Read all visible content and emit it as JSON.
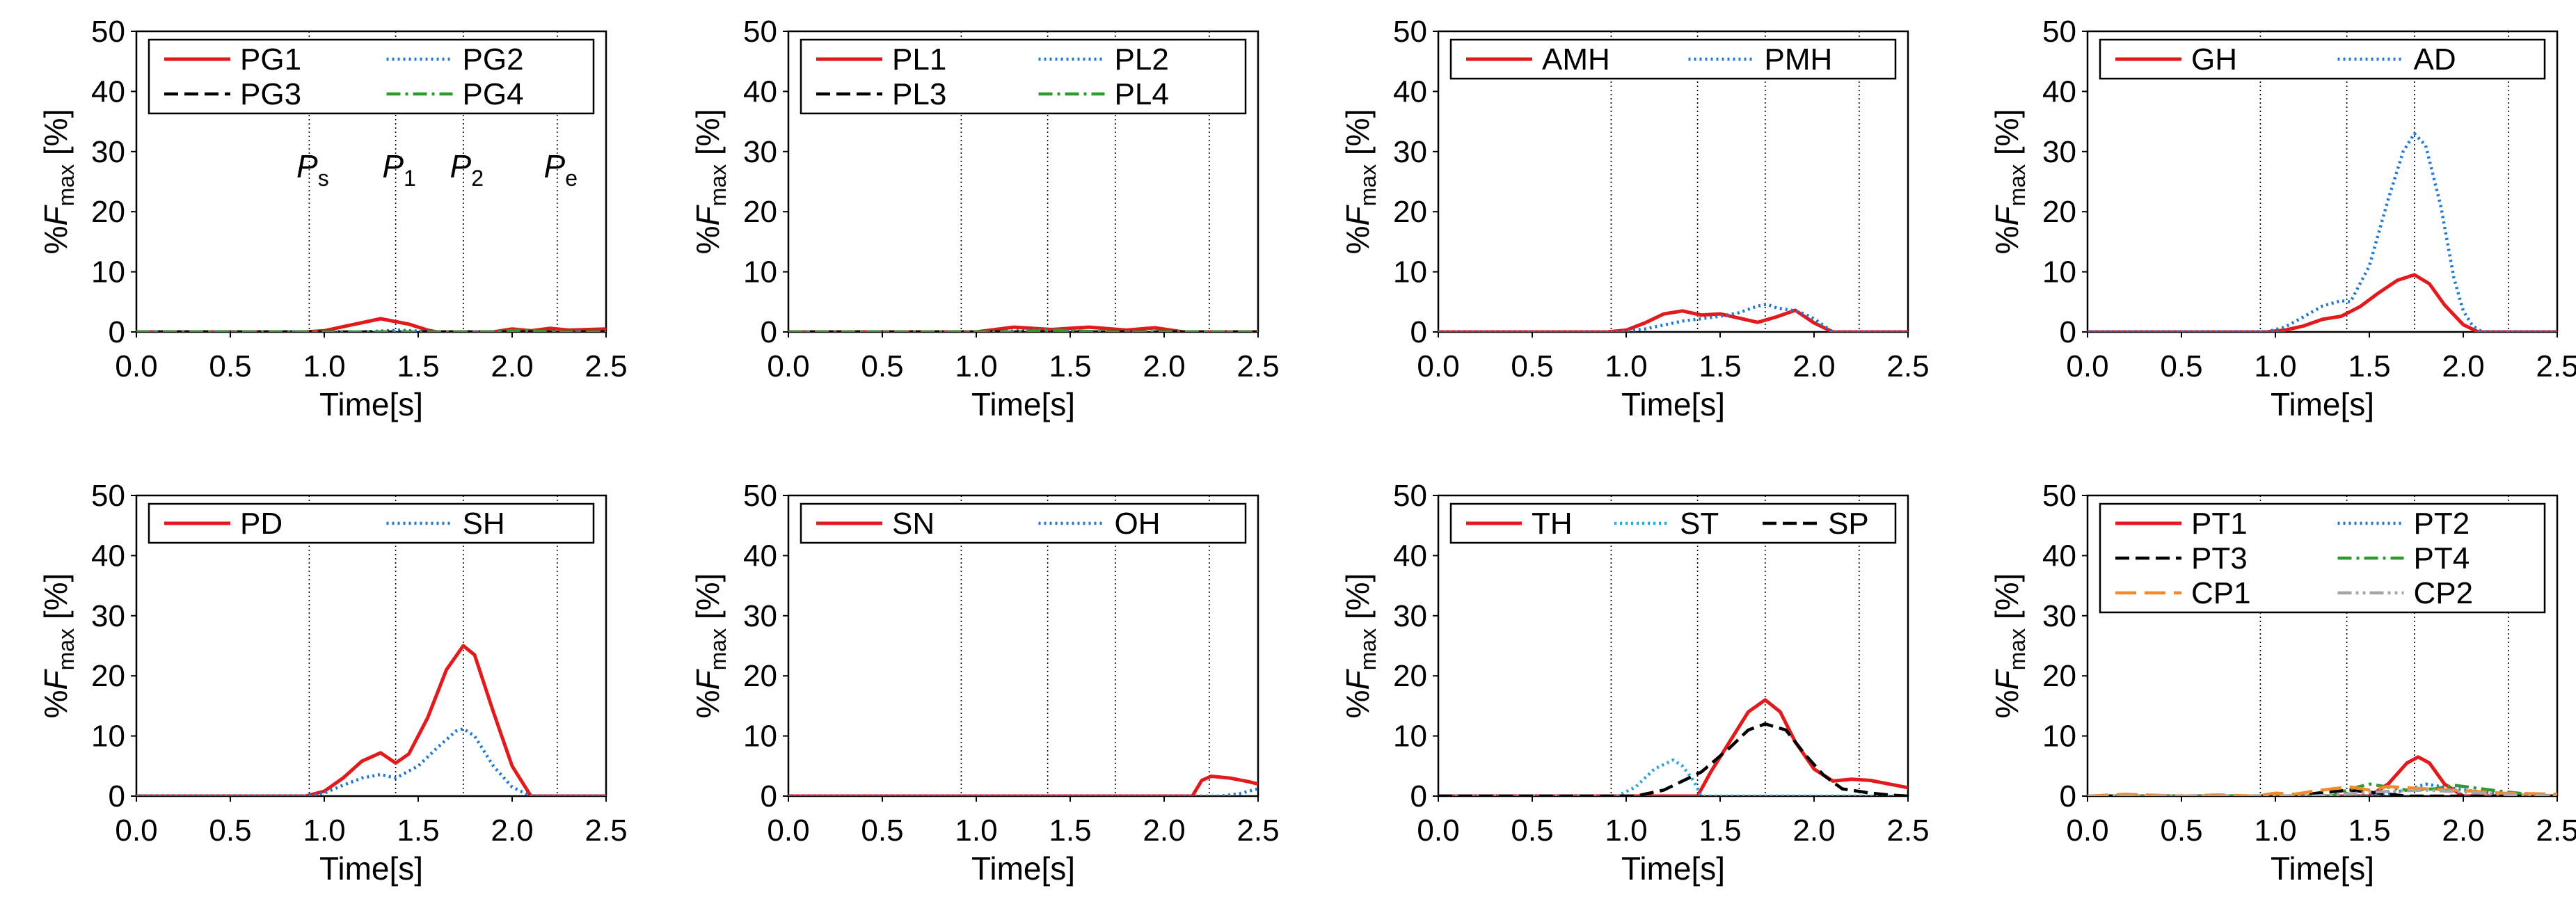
{
  "figure": {
    "panel_count": 8,
    "x_axis": {
      "label": "Time[s]",
      "min": 0.0,
      "max": 2.5,
      "ticks": [
        "0.0",
        "0.5",
        "1.0",
        "1.5",
        "2.0",
        "2.5"
      ]
    },
    "y_axis": {
      "label_prefix": "%",
      "label_symbol": "F",
      "label_subscript": "max",
      "label_unit": "[%]",
      "min": 0,
      "max": 50,
      "ticks": [
        "0",
        "10",
        "20",
        "30",
        "40",
        "50"
      ]
    },
    "phase_lines": [
      0.92,
      1.38,
      1.74,
      2.24
    ],
    "phase_labels": [
      {
        "base": "P",
        "sub": "s",
        "x": 0.92
      },
      {
        "base": "P",
        "sub": "1",
        "x": 1.38
      },
      {
        "base": "P",
        "sub": "2",
        "x": 1.74
      },
      {
        "base": "P",
        "sub": "e",
        "x": 2.24
      }
    ]
  },
  "colors": {
    "red": "#e31a1c",
    "blue": "#1f78d1",
    "black": "#000000",
    "green": "#2e9a2e",
    "orange": "#f4892a",
    "gray": "#a6a6a6"
  },
  "chart_data": [
    {
      "type": "line",
      "panel": 1,
      "xlabel": "Time[s]",
      "ylabel": "%Fmax [%]",
      "xlim": [
        0,
        2.5
      ],
      "ylim": [
        0,
        50
      ],
      "show_phase_labels": true,
      "legend_columns": 2,
      "legend_location": "top",
      "series": [
        {
          "name": "PG1",
          "color": "#e31a1c",
          "style": "solid",
          "x": [
            0,
            0.9,
            1.0,
            1.15,
            1.3,
            1.45,
            1.55,
            1.6,
            1.9,
            2.0,
            2.1,
            2.2,
            2.3,
            2.5
          ],
          "y": [
            0,
            0,
            0.2,
            1.2,
            2.2,
            1.3,
            0.3,
            0,
            0,
            0.5,
            0.2,
            0.6,
            0.3,
            0.5
          ]
        },
        {
          "name": "PG2",
          "color": "#1f78d1",
          "style": "dotted",
          "x": [
            0,
            1.2,
            1.4,
            1.6,
            2.5
          ],
          "y": [
            0,
            0,
            0.3,
            0,
            0
          ]
        },
        {
          "name": "PG3",
          "color": "#000000",
          "style": "dashed",
          "x": [
            0,
            2.5
          ],
          "y": [
            0,
            0
          ]
        },
        {
          "name": "PG4",
          "color": "#2e9a2e",
          "style": "dashdot",
          "x": [
            0,
            1.9,
            2.05,
            2.2,
            2.5
          ],
          "y": [
            0,
            0,
            0.3,
            0,
            0
          ]
        }
      ]
    },
    {
      "type": "line",
      "panel": 2,
      "xlabel": "Time[s]",
      "ylabel": "%Fmax [%]",
      "xlim": [
        0,
        2.5
      ],
      "ylim": [
        0,
        50
      ],
      "show_phase_labels": false,
      "legend_columns": 2,
      "legend_location": "top",
      "series": [
        {
          "name": "PL1",
          "color": "#e31a1c",
          "style": "solid",
          "x": [
            0,
            1.0,
            1.2,
            1.4,
            1.6,
            1.8,
            1.95,
            2.1,
            2.5
          ],
          "y": [
            0,
            0,
            0.8,
            0.4,
            0.8,
            0.3,
            0.7,
            0,
            0
          ]
        },
        {
          "name": "PL2",
          "color": "#1f78d1",
          "style": "dotted",
          "x": [
            0,
            1.1,
            1.35,
            1.6,
            2.5
          ],
          "y": [
            0,
            0,
            0.4,
            0,
            0
          ]
        },
        {
          "name": "PL3",
          "color": "#000000",
          "style": "dashed",
          "x": [
            0,
            2.5
          ],
          "y": [
            0,
            0
          ]
        },
        {
          "name": "PL4",
          "color": "#2e9a2e",
          "style": "dashdot",
          "x": [
            0,
            1.2,
            1.4,
            1.7,
            2.5
          ],
          "y": [
            0,
            0,
            0.3,
            0,
            0
          ]
        }
      ]
    },
    {
      "type": "line",
      "panel": 3,
      "xlabel": "Time[s]",
      "ylabel": "%Fmax [%]",
      "xlim": [
        0,
        2.5
      ],
      "ylim": [
        0,
        50
      ],
      "show_phase_labels": false,
      "legend_columns": 2,
      "legend_location": "top",
      "series": [
        {
          "name": "AMH",
          "color": "#e31a1c",
          "style": "solid",
          "x": [
            0,
            0.9,
            1.0,
            1.1,
            1.2,
            1.3,
            1.4,
            1.5,
            1.6,
            1.7,
            1.8,
            1.9,
            2.0,
            2.1,
            2.5
          ],
          "y": [
            0,
            0,
            0.3,
            1.5,
            3.0,
            3.5,
            2.8,
            3.0,
            2.3,
            1.6,
            2.5,
            3.6,
            1.5,
            0,
            0
          ]
        },
        {
          "name": "PMH",
          "color": "#1f78d1",
          "style": "dotted",
          "x": [
            0,
            0.95,
            1.1,
            1.3,
            1.5,
            1.6,
            1.7,
            1.75,
            1.8,
            1.9,
            1.95,
            2.0,
            2.1,
            2.5
          ],
          "y": [
            0,
            0,
            0.5,
            1.8,
            2.6,
            3.2,
            4.3,
            4.6,
            4.0,
            3.5,
            3.0,
            2.2,
            0,
            0
          ]
        }
      ]
    },
    {
      "type": "line",
      "panel": 4,
      "xlabel": "Time[s]",
      "ylabel": "%Fmax [%]",
      "xlim": [
        0,
        2.5
      ],
      "ylim": [
        0,
        50
      ],
      "show_phase_labels": false,
      "legend_columns": 2,
      "legend_location": "top",
      "series": [
        {
          "name": "GH",
          "color": "#e31a1c",
          "style": "solid",
          "x": [
            0,
            0.95,
            1.05,
            1.15,
            1.25,
            1.35,
            1.45,
            1.55,
            1.65,
            1.74,
            1.82,
            1.9,
            2.0,
            2.08,
            2.5
          ],
          "y": [
            0,
            0,
            0.3,
            1.0,
            2.1,
            2.6,
            4.2,
            6.5,
            8.6,
            9.5,
            8.0,
            4.5,
            1.2,
            0,
            0
          ]
        },
        {
          "name": "AD",
          "color": "#1f78d1",
          "style": "dotted",
          "x": [
            0,
            0.95,
            1.05,
            1.15,
            1.25,
            1.35,
            1.4,
            1.5,
            1.6,
            1.68,
            1.74,
            1.8,
            1.88,
            1.95,
            2.0,
            2.05,
            2.1,
            2.5
          ],
          "y": [
            0,
            0,
            0.8,
            2.5,
            4.3,
            5.2,
            5.0,
            11.0,
            22.0,
            30.0,
            33.0,
            31.0,
            21.0,
            9.0,
            3.5,
            1.0,
            0,
            0
          ]
        }
      ]
    },
    {
      "type": "line",
      "panel": 5,
      "xlabel": "Time[s]",
      "ylabel": "%Fmax [%]",
      "xlim": [
        0,
        2.5
      ],
      "ylim": [
        0,
        50
      ],
      "show_phase_labels": false,
      "legend_columns": 2,
      "legend_location": "top",
      "series": [
        {
          "name": "PD",
          "color": "#e31a1c",
          "style": "solid",
          "x": [
            0,
            0.9,
            1.0,
            1.1,
            1.2,
            1.3,
            1.38,
            1.45,
            1.55,
            1.65,
            1.74,
            1.8,
            1.9,
            2.0,
            2.1,
            2.5
          ],
          "y": [
            0,
            0,
            0.8,
            3.0,
            5.8,
            7.2,
            5.5,
            7.0,
            13.0,
            21.0,
            25.0,
            23.5,
            14.0,
            5.0,
            0,
            0
          ]
        },
        {
          "name": "SH",
          "color": "#1f78d1",
          "style": "dotted",
          "x": [
            0,
            0.9,
            1.0,
            1.1,
            1.2,
            1.3,
            1.38,
            1.5,
            1.6,
            1.7,
            1.74,
            1.8,
            1.9,
            2.0,
            2.1,
            2.5
          ],
          "y": [
            0,
            0,
            0.5,
            1.8,
            3.0,
            3.6,
            3.0,
            5.0,
            8.0,
            10.8,
            11.2,
            10.0,
            5.0,
            1.5,
            0,
            0
          ]
        }
      ]
    },
    {
      "type": "line",
      "panel": 6,
      "xlabel": "Time[s]",
      "ylabel": "%Fmax [%]",
      "xlim": [
        0,
        2.5
      ],
      "ylim": [
        0,
        50
      ],
      "show_phase_labels": false,
      "legend_columns": 2,
      "legend_location": "top",
      "series": [
        {
          "name": "SN",
          "color": "#e31a1c",
          "style": "solid",
          "x": [
            0,
            2.15,
            2.2,
            2.25,
            2.35,
            2.45,
            2.5
          ],
          "y": [
            0,
            0,
            2.6,
            3.3,
            3.0,
            2.4,
            2.0
          ]
        },
        {
          "name": "OH",
          "color": "#1f78d1",
          "style": "dotted",
          "x": [
            0,
            2.3,
            2.4,
            2.5
          ],
          "y": [
            0,
            0,
            0.4,
            1.2
          ]
        }
      ]
    },
    {
      "type": "line",
      "panel": 7,
      "xlabel": "Time[s]",
      "ylabel": "%Fmax [%]",
      "xlim": [
        0,
        2.5
      ],
      "ylim": [
        0,
        50
      ],
      "show_phase_labels": false,
      "legend_columns": 3,
      "legend_location": "top",
      "series": [
        {
          "name": "TH",
          "color": "#e31a1c",
          "style": "solid",
          "x": [
            0,
            1.38,
            1.45,
            1.55,
            1.65,
            1.74,
            1.82,
            1.9,
            2.0,
            2.1,
            2.2,
            2.3,
            2.4,
            2.5
          ],
          "y": [
            0,
            0,
            4.0,
            9.0,
            14.0,
            16.0,
            14.0,
            9.0,
            4.5,
            2.5,
            2.8,
            2.6,
            2.0,
            1.4
          ]
        },
        {
          "name": "ST",
          "color": "#29a3d9",
          "style": "dotted",
          "x": [
            0,
            0.95,
            1.05,
            1.15,
            1.25,
            1.3,
            1.36,
            1.4,
            1.5,
            2.5
          ],
          "y": [
            0,
            0,
            1.5,
            4.5,
            6.0,
            5.0,
            2.5,
            0,
            0,
            0
          ]
        },
        {
          "name": "SP",
          "color": "#000000",
          "style": "dashed",
          "x": [
            0,
            1.05,
            1.2,
            1.4,
            1.55,
            1.65,
            1.74,
            1.85,
            1.95,
            2.05,
            2.15,
            2.3,
            2.4,
            2.5
          ],
          "y": [
            0,
            0,
            1.0,
            4.0,
            8.0,
            11.0,
            12.0,
            11.0,
            7.0,
            3.5,
            1.2,
            0.5,
            0.2,
            0
          ]
        }
      ]
    },
    {
      "type": "line",
      "panel": 8,
      "xlabel": "Time[s]",
      "ylabel": "%Fmax [%]",
      "xlim": [
        0,
        2.5
      ],
      "ylim": [
        0,
        50
      ],
      "show_phase_labels": false,
      "legend_columns": 2,
      "legend_location": "top",
      "series": [
        {
          "name": "PT1",
          "color": "#e31a1c",
          "style": "solid",
          "x": [
            0,
            1.5,
            1.6,
            1.7,
            1.76,
            1.82,
            1.9,
            2.0,
            2.5
          ],
          "y": [
            0,
            0,
            2.0,
            5.5,
            6.5,
            5.5,
            2.0,
            0,
            0
          ]
        },
        {
          "name": "PT2",
          "color": "#1f78d1",
          "style": "dotted",
          "x": [
            0,
            1.5,
            1.7,
            1.8,
            1.9,
            2.0,
            2.2,
            2.5
          ],
          "y": [
            0,
            0,
            1.0,
            2.0,
            1.5,
            1.0,
            0.4,
            0
          ]
        },
        {
          "name": "PT3",
          "color": "#000000",
          "style": "dashed",
          "x": [
            0,
            1.1,
            1.25,
            1.4,
            1.55,
            1.7,
            2.5
          ],
          "y": [
            0,
            0,
            0.6,
            1.0,
            0.5,
            0,
            0
          ]
        },
        {
          "name": "PT4",
          "color": "#2e9a2e",
          "style": "dashdot",
          "x": [
            0,
            1.3,
            1.4,
            1.5,
            1.6,
            1.7,
            1.85,
            1.95,
            2.05,
            2.2,
            2.35,
            2.5
          ],
          "y": [
            0,
            0,
            1.2,
            2.0,
            1.5,
            1.0,
            1.2,
            1.8,
            1.4,
            0.8,
            0.3,
            0
          ]
        },
        {
          "name": "CP1",
          "color": "#f4892a",
          "style": "longdash",
          "x": [
            0,
            0.2,
            0.5,
            0.7,
            0.9,
            1.0,
            1.1,
            1.2,
            1.3,
            1.4,
            1.5,
            1.6,
            1.8,
            2.0,
            2.2,
            2.5
          ],
          "y": [
            0,
            0.3,
            0,
            0.2,
            0,
            0.5,
            0.3,
            0.8,
            1.2,
            1.5,
            1.0,
            1.6,
            1.2,
            0.9,
            0.5,
            0.3
          ]
        },
        {
          "name": "CP2",
          "color": "#a6a6a6",
          "style": "dashdotdot",
          "x": [
            0,
            1.2,
            1.4,
            1.6,
            1.8,
            2.0,
            2.2,
            2.5
          ],
          "y": [
            0,
            0,
            0.4,
            0.8,
            1.0,
            0.7,
            0.3,
            0
          ]
        }
      ]
    }
  ]
}
